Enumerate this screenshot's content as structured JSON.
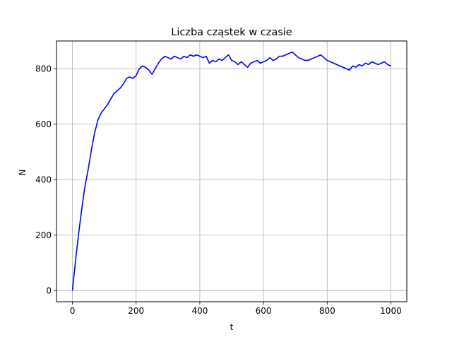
{
  "chart_data": {
    "type": "line",
    "title": "Liczba cząstek w czasie",
    "xlabel": "t",
    "ylabel": "N",
    "xlim": [
      -50,
      1050
    ],
    "ylim": [
      -40,
      900
    ],
    "xticks": [
      0,
      200,
      400,
      600,
      800,
      1000
    ],
    "yticks": [
      0,
      200,
      400,
      600,
      800
    ],
    "grid": true,
    "legend": "none",
    "series": [
      {
        "color": "#0000ff",
        "x": [
          0,
          10,
          20,
          30,
          40,
          50,
          60,
          70,
          80,
          90,
          100,
          110,
          120,
          130,
          140,
          150,
          160,
          170,
          180,
          190,
          200,
          210,
          220,
          230,
          240,
          250,
          260,
          270,
          280,
          290,
          300,
          310,
          320,
          330,
          340,
          350,
          360,
          370,
          380,
          390,
          400,
          410,
          420,
          430,
          440,
          450,
          460,
          470,
          480,
          490,
          500,
          510,
          520,
          530,
          540,
          550,
          560,
          570,
          580,
          590,
          600,
          610,
          620,
          630,
          640,
          650,
          660,
          670,
          680,
          690,
          700,
          710,
          720,
          730,
          740,
          750,
          760,
          770,
          780,
          790,
          800,
          810,
          820,
          830,
          840,
          850,
          860,
          870,
          880,
          890,
          900,
          910,
          920,
          930,
          940,
          950,
          960,
          970,
          980,
          990,
          1000
        ],
        "y": [
          0,
          110,
          210,
          300,
          380,
          440,
          510,
          570,
          615,
          640,
          655,
          670,
          690,
          710,
          720,
          730,
          745,
          765,
          770,
          765,
          775,
          800,
          810,
          805,
          795,
          780,
          800,
          820,
          835,
          845,
          840,
          835,
          845,
          840,
          835,
          845,
          840,
          850,
          845,
          850,
          845,
          840,
          845,
          820,
          830,
          825,
          835,
          830,
          840,
          850,
          830,
          825,
          815,
          825,
          815,
          805,
          820,
          825,
          830,
          820,
          825,
          830,
          840,
          830,
          835,
          845,
          845,
          850,
          855,
          860,
          850,
          840,
          835,
          830,
          830,
          835,
          840,
          845,
          850,
          840,
          830,
          825,
          820,
          815,
          810,
          805,
          800,
          795,
          810,
          805,
          815,
          810,
          820,
          815,
          825,
          820,
          815,
          820,
          825,
          815,
          810
        ]
      }
    ]
  }
}
